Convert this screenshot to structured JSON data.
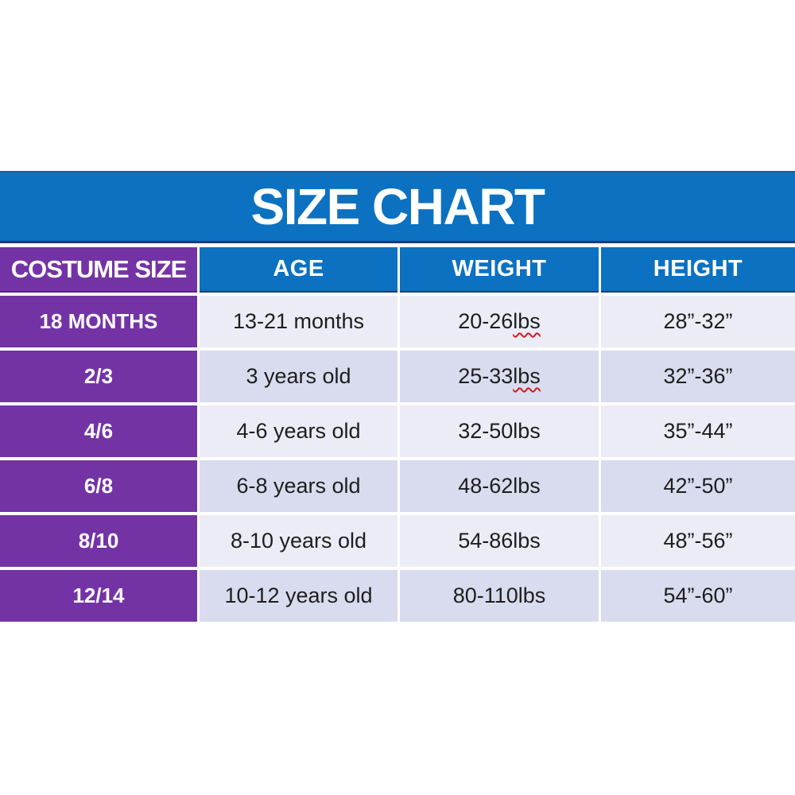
{
  "banner": {
    "title": "SIZE CHART"
  },
  "table": {
    "columns": [
      "COSTUME SIZE",
      "AGE",
      "WEIGHT",
      "HEIGHT"
    ],
    "rows": [
      {
        "size": "18 MONTHS",
        "age": "13-21 months",
        "weight": "20-26 ",
        "weight_unit": "lbs",
        "weight_unit_misspelled": true,
        "height": "28”-32”"
      },
      {
        "size": "2/3",
        "age": "3 years old",
        "weight": "25-33 ",
        "weight_unit": "lbs",
        "weight_unit_misspelled": true,
        "height": "32”-36”"
      },
      {
        "size": "4/6",
        "age": "4-6 years old",
        "weight": "32-50",
        "weight_unit": "lbs",
        "weight_unit_misspelled": false,
        "height": "35”-44”"
      },
      {
        "size": "6/8",
        "age": "6-8 years old",
        "weight": "48-62",
        "weight_unit": "lbs",
        "weight_unit_misspelled": false,
        "height": "42”-50”"
      },
      {
        "size": "8/10",
        "age": "8-10 years old",
        "weight": "54-86",
        "weight_unit": "lbs",
        "weight_unit_misspelled": false,
        "height": "48”-56”"
      },
      {
        "size": "12/14",
        "age": "10-12 years old",
        "weight": "80-110",
        "weight_unit": "lbs",
        "weight_unit_misspelled": false,
        "height": "54”-60”"
      }
    ]
  },
  "colors": {
    "banner_blue": "#0c71c0",
    "separator_navy": "#1d3b6e",
    "purple": "#7433a5",
    "row_light": "#ebecf6",
    "row_dark": "#d8dcee",
    "text_dark": "#1e1e1e",
    "text_white": "#ffffff",
    "misspell_red": "#cc1f1f"
  },
  "chart_data": {
    "type": "table",
    "title": "SIZE CHART",
    "columns": [
      "COSTUME SIZE",
      "AGE",
      "WEIGHT",
      "HEIGHT"
    ],
    "rows": [
      [
        "18 MONTHS",
        "13-21 months",
        "20-26 lbs",
        "28”-32”"
      ],
      [
        "2/3",
        "3 years old",
        "25-33 lbs",
        "32”-36”"
      ],
      [
        "4/6",
        "4-6 years old",
        "32-50lbs",
        "35”-44”"
      ],
      [
        "6/8",
        "6-8 years old",
        "48-62lbs",
        "42”-50”"
      ],
      [
        "8/10",
        "8-10 years old",
        "54-86lbs",
        "48”-56”"
      ],
      [
        "12/14",
        "10-12 years old",
        "80-110lbs",
        "54”-60”"
      ]
    ],
    "layout": {
      "header_fill": "#0c71c0",
      "first_column_fill": "#7433a5",
      "banded_rows": true
    }
  }
}
